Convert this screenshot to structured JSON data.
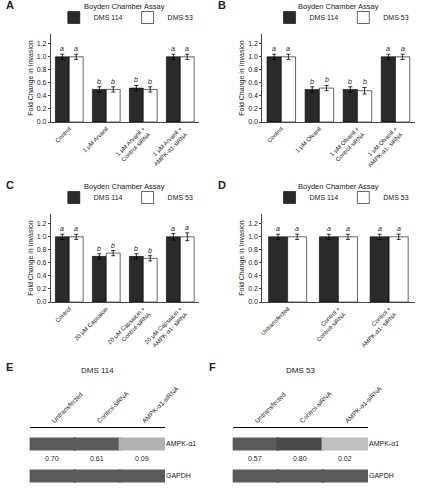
{
  "chart_data": [
    {
      "type": "bar",
      "title": "Boyden Chamber Assay",
      "annotations": [
        "A"
      ],
      "categories": [
        "Control",
        "1 μM Arvanil",
        "1 μM Arvanil +\nControl-siRNA",
        "1 μM Arvanil +\nAMPK-α1-siRNA"
      ],
      "series": [
        {
          "name": "DMS 114",
          "color": "#2a2a2a",
          "values": [
            1.0,
            0.5,
            0.52,
            1.0
          ],
          "errors": [
            0.04,
            0.04,
            0.04,
            0.04
          ],
          "annotations": [
            "a",
            "b",
            "b",
            "a"
          ]
        },
        {
          "name": "DMS 53",
          "color": "#ffffff",
          "values": [
            1.0,
            0.5,
            0.5,
            1.0
          ],
          "errors": [
            0.04,
            0.04,
            0.04,
            0.04
          ],
          "annotations": [
            "a",
            "b",
            "b",
            "a"
          ]
        }
      ],
      "ylabel": "Fold Change in Invasion",
      "ylim": [
        0,
        1.35
      ],
      "yticks": [
        {
          "value": 0,
          "label": "0.0"
        },
        0.2,
        0.4,
        0.6,
        0.8,
        {
          "value": 1,
          "label": "1.0"
        },
        1.2
      ],
      "grid": false,
      "legend": "upper right"
    },
    {
      "type": "bar",
      "title": "Boyden Chamber Assay",
      "annotations": [
        "B"
      ],
      "categories": [
        "Control",
        "1 μM Olvanil",
        "1 μM Olvanil +\nControl-siRNA",
        "1 μM Olvanil +\nAMPK-α1- siRNA"
      ],
      "series": [
        {
          "name": "DMS 114",
          "color": "#2a2a2a",
          "values": [
            1.0,
            0.5,
            0.5,
            1.0
          ],
          "errors": [
            0.04,
            0.04,
            0.04,
            0.04
          ],
          "annotations": [
            "a",
            "b",
            "b",
            "a"
          ]
        },
        {
          "name": "DMS 53",
          "color": "#ffffff",
          "values": [
            1.0,
            0.52,
            0.48,
            1.0
          ],
          "errors": [
            0.04,
            0.04,
            0.05,
            0.04
          ],
          "annotations": [
            "a",
            "b",
            "b",
            "a"
          ]
        }
      ],
      "ylabel": "Fold Change in Invasion",
      "ylim": [
        0,
        1.35
      ],
      "yticks": [
        {
          "value": 0,
          "label": "0.0"
        },
        0.2,
        0.4,
        0.6,
        0.8,
        {
          "value": 1,
          "label": "1.0"
        },
        1.2
      ],
      "grid": false,
      "legend": "upper right"
    },
    {
      "type": "bar",
      "title": "Boyden Chamber Assay",
      "annotations": [
        "C"
      ],
      "categories": [
        "Control",
        "20 μM Capsaicin",
        "20 μM Capsaicin +\nControl-siRNA",
        "20 μM Capsaicin +\nAMPK-α1- siRNA"
      ],
      "series": [
        {
          "name": "DMS 114",
          "color": "#2a2a2a",
          "values": [
            1.0,
            0.7,
            0.7,
            1.0
          ],
          "errors": [
            0.04,
            0.04,
            0.04,
            0.05
          ],
          "annotations": [
            "a",
            "b",
            "b",
            "a"
          ]
        },
        {
          "name": "DMS 53",
          "color": "#ffffff",
          "values": [
            1.0,
            0.75,
            0.67,
            1.0
          ],
          "errors": [
            0.04,
            0.04,
            0.04,
            0.06
          ],
          "annotations": [
            "a",
            "b",
            "b",
            "a"
          ]
        }
      ],
      "ylabel": "Fold Change in Invasion",
      "ylim": [
        0,
        1.35
      ],
      "yticks": [
        {
          "value": 0,
          "label": "0.0"
        },
        0.2,
        0.4,
        0.6,
        0.8,
        {
          "value": 1,
          "label": "1.0"
        },
        1.2
      ],
      "grid": false,
      "legend": "upper right"
    },
    {
      "type": "bar",
      "title": "Boyden Chamber Assay",
      "annotations": [
        "D"
      ],
      "categories": [
        "Untransfected",
        "Control +\nControl-siRNA",
        "Control +\nAMPK-α1- siRNA"
      ],
      "series": [
        {
          "name": "DMS 114",
          "color": "#2a2a2a",
          "values": [
            1.0,
            1.0,
            1.0
          ],
          "errors": [
            0.04,
            0.04,
            0.04
          ],
          "annotations": [
            "a",
            "a",
            "a"
          ]
        },
        {
          "name": "DMS 53",
          "color": "#ffffff",
          "values": [
            1.0,
            1.0,
            1.0
          ],
          "errors": [
            0.04,
            0.04,
            0.04
          ],
          "annotations": [
            "a",
            "a",
            "a"
          ]
        }
      ],
      "ylabel": "Fold Change in Invasion",
      "ylim": [
        0,
        1.35
      ],
      "yticks": [
        {
          "value": 0,
          "label": "0.0"
        },
        0.2,
        0.4,
        0.6,
        0.8,
        {
          "value": 1,
          "label": "1.0"
        },
        1.2
      ],
      "grid": false,
      "legend": "upper right"
    },
    {
      "type": "blot",
      "title": "DMS 114",
      "annotations": [
        "E"
      ],
      "categories": [
        "Untransfected",
        "Control-siRNA",
        "AMPK-α1-siRNA"
      ],
      "series": [
        {
          "name": "AMPK-α1",
          "colors": [
            "#5a5a5a",
            "#5a5a5a",
            "#b0b0b0"
          ],
          "values": [
            0.7,
            0.61,
            0.09
          ],
          "value_labels": [
            "0.70",
            "0.61",
            "0.09"
          ],
          "data_labels": true
        },
        {
          "name": "GAPDH",
          "colors": [
            "#5a5a5a",
            "#5a5a5a",
            "#5a5a5a"
          ]
        }
      ]
    },
    {
      "type": "blot",
      "title": "DMS 53",
      "annotations": [
        "F"
      ],
      "categories": [
        "Untransfected",
        "Control-siRNA",
        "AMPK-α1-siRNA"
      ],
      "series": [
        {
          "name": "AMPK-α1",
          "colors": [
            "#5a5a5a",
            "#4a4a4a",
            "#c0c0c0"
          ],
          "values": [
            0.57,
            0.8,
            0.02
          ],
          "value_labels": [
            "0.57",
            "0.80",
            "0.02"
          ],
          "data_labels": true
        },
        {
          "name": "GAPDH",
          "colors": [
            "#5a5a5a",
            "#5a5a5a",
            "#5a5a5a"
          ]
        }
      ]
    }
  ]
}
